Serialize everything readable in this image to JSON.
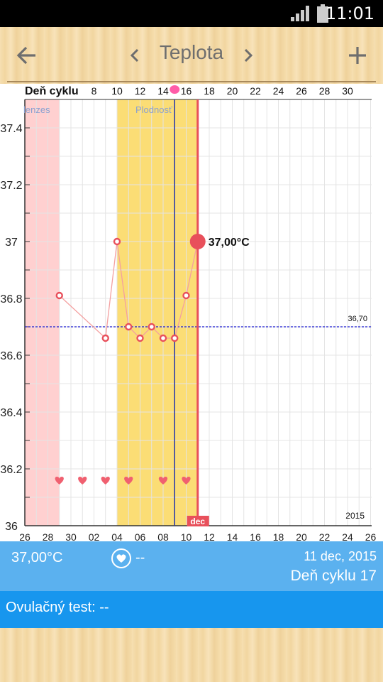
{
  "status_bar": {
    "time": "11:01",
    "icons": [
      "signal-icon",
      "battery-icon"
    ]
  },
  "app_bar": {
    "title": "Teplota",
    "icons": [
      "back-arrow-icon",
      "chevron-left-icon",
      "chevron-right-icon",
      "plus-icon"
    ]
  },
  "chart_data": {
    "type": "line",
    "top_axis_label": "Deň cyklu",
    "top_axis_ticks": [
      "8",
      "10",
      "12",
      "14",
      "16",
      "18",
      "20",
      "22",
      "24",
      "26",
      "28",
      "30"
    ],
    "x_ticks": [
      "26",
      "28",
      "30",
      "02",
      "04",
      "06",
      "08",
      "10",
      "12",
      "14",
      "16",
      "18",
      "20",
      "22",
      "24",
      "26"
    ],
    "y_ticks": [
      "37.4",
      "37.2",
      "37",
      "36.8",
      "36.6",
      "36.4",
      "36.2",
      "36"
    ],
    "ylim": [
      36,
      37.5
    ],
    "year_label": "2015",
    "month_marker": "dec",
    "menses_label": "lenzes",
    "fertile_label": "Plodnosť",
    "coverline": 36.7,
    "coverline_label": "36,70",
    "points": [
      {
        "slot": 3,
        "y": 36.81
      },
      {
        "slot": 7,
        "y": 36.66
      },
      {
        "slot": 8,
        "y": 37.0
      },
      {
        "slot": 9,
        "y": 36.7
      },
      {
        "slot": 10,
        "y": 36.66
      },
      {
        "slot": 11,
        "y": 36.7
      },
      {
        "slot": 12,
        "y": 36.66
      },
      {
        "slot": 13,
        "y": 36.66
      },
      {
        "slot": 14,
        "y": 36.81
      },
      {
        "slot": 15,
        "y": 37.0
      }
    ],
    "current_label": "37,00°C",
    "intercourse_slots": [
      3,
      5,
      7,
      9,
      12,
      14
    ],
    "menses_slots": [
      0,
      3
    ],
    "fertile_slots": [
      8,
      15
    ],
    "ovulation_slot": 13,
    "today_slot": 15,
    "colors": {
      "menses": "#ffd0d0",
      "fertile": "#fbdd75",
      "line": "#f4a0a0",
      "point": "#e8505b",
      "coverline": "#1a1ad0",
      "ovulation": "#2233aa",
      "today": "#e8505b",
      "heart": "#f06070"
    }
  },
  "info_bar": {
    "temperature": "37,00°C",
    "intercourse_value": "--",
    "date": "11 dec, 2015",
    "cycle_day": "Deň cyklu 17"
  },
  "ovulation_test": {
    "text": "Ovulačný test: --"
  }
}
